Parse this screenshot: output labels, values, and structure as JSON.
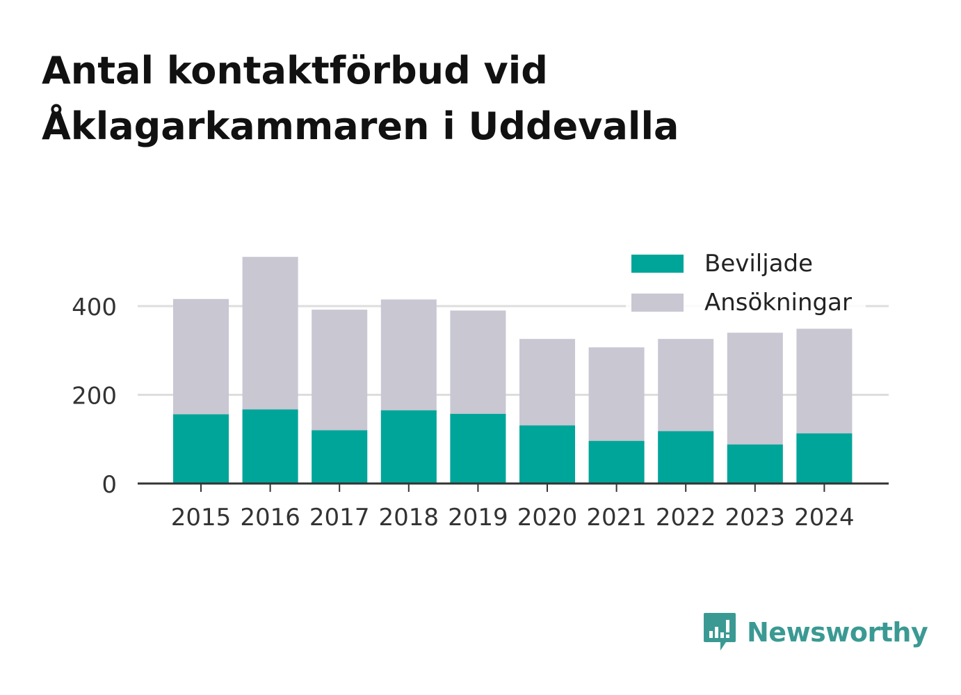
{
  "title_lines": [
    "Antal kontaktförbud vid",
    "Åklagarkammaren i Uddevalla"
  ],
  "brand": {
    "name": "Newsworthy",
    "icon": "newsworthy-logo-icon"
  },
  "colors": {
    "granted": "#00a59a",
    "applications": "#c8c7d2",
    "grid": "#dddddd",
    "axis": "#333333",
    "brand": "#3a9a93"
  },
  "chart_data": {
    "type": "bar",
    "stacked": "overlay",
    "categories": [
      "2015",
      "2016",
      "2017",
      "2018",
      "2019",
      "2020",
      "2021",
      "2022",
      "2023",
      "2024"
    ],
    "series": [
      {
        "name": "Ansökningar",
        "values": [
          416,
          511,
          392,
          415,
          390,
          326,
          307,
          326,
          340,
          349
        ]
      },
      {
        "name": "Beviljade",
        "values": [
          156,
          167,
          120,
          165,
          157,
          131,
          96,
          118,
          88,
          113
        ]
      }
    ],
    "yticks": [
      0,
      200,
      400
    ],
    "ylim": [
      0,
      560
    ],
    "grid": true,
    "legend": "top-right",
    "legend_items": [
      "Beviljade",
      "Ansökningar"
    ]
  }
}
